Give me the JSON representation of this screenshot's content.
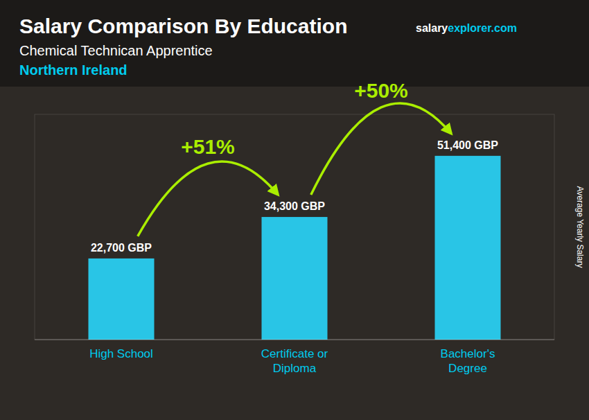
{
  "chart_data": {
    "type": "bar",
    "title": "Salary Comparison By Education",
    "subtitle": "Chemical Technican Apprentice",
    "annotations": [
      "Northern Ireland",
      "salary",
      "explorer",
      ".com",
      "+51%",
      "+50%"
    ],
    "y_label": "Average Yearly Salary",
    "categories": [
      "High School",
      "Certificate or\nDiploma",
      "Bachelor's\nDegree"
    ],
    "values": [
      22700,
      34300,
      51400
    ],
    "value_labels": [
      "22,700 GBP",
      "34,300 GBP",
      "51,400 GBP"
    ],
    "color": "#29c5e6",
    "ylim": [
      0,
      63000
    ],
    "grid": false,
    "data_labels": true,
    "tick_labels": "x"
  }
}
